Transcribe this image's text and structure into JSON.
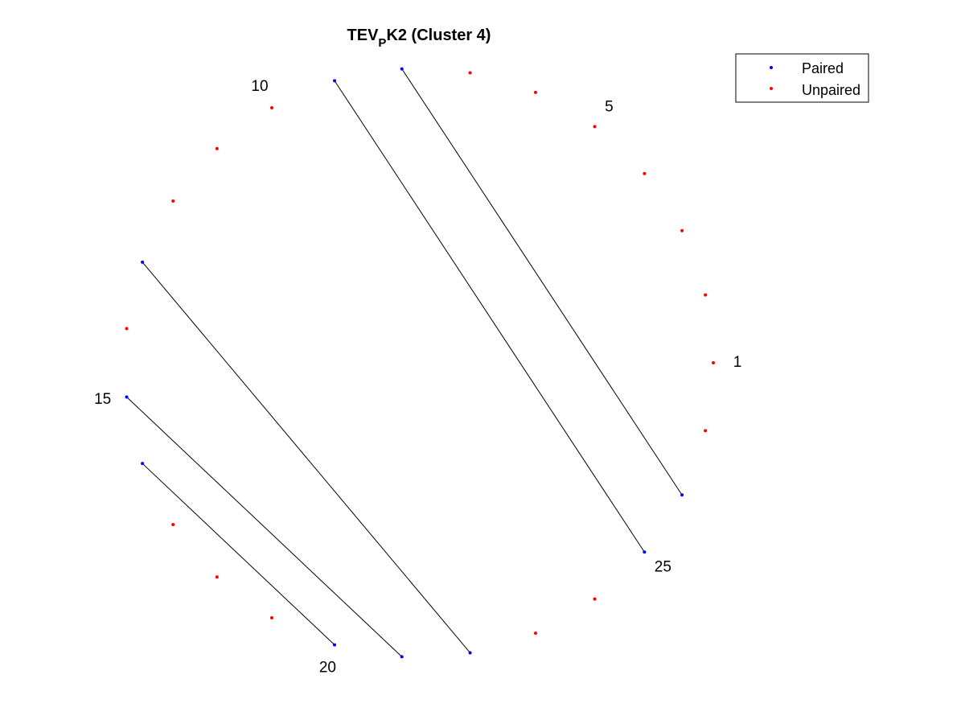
{
  "title": {
    "main": "TEV",
    "subscript": "P",
    "rest": "K2 (Cluster 4)"
  },
  "legend": {
    "placement": "top-right",
    "entries": [
      {
        "label": "Paired",
        "color": "#0000ff"
      },
      {
        "label": "Unpaired",
        "color": "#ff0000"
      }
    ]
  },
  "chart_data": {
    "type": "circle-plot",
    "node_count": 27,
    "start_angle_deg": 0,
    "direction": "counterclockwise",
    "labeled_nodes": [
      "1",
      "5",
      "10",
      "15",
      "20",
      "25"
    ],
    "pairs": [
      [
        8,
        26
      ],
      [
        9,
        25
      ],
      [
        13,
        22
      ],
      [
        15,
        21
      ],
      [
        16,
        20
      ]
    ],
    "colors": {
      "paired": "#0000ff",
      "unpaired": "#ff0000",
      "line": "#000000"
    }
  }
}
